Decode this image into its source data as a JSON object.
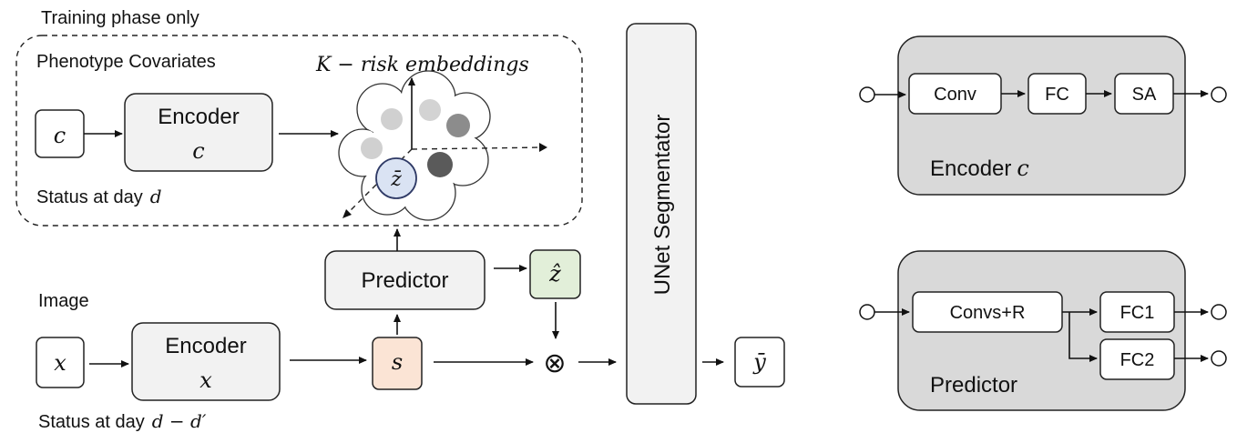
{
  "training_label": "Training phase only",
  "phenotype_label": "Phenotype Covariates",
  "risk_label": "K − risk embeddings",
  "status_d_label": "Status at day",
  "status_d_var": "d",
  "status_dd_label": "Status at day",
  "status_dd_var": "d − d′",
  "image_label": "Image",
  "c_symbol": "c",
  "x_symbol": "x",
  "encoder_c": {
    "title": "Encoder",
    "sub": "c"
  },
  "encoder_x": {
    "title": "Encoder",
    "sub": "x"
  },
  "zbar_symbol": "z̄",
  "zhat_symbol": "ẑ",
  "s_symbol": "s",
  "ybar_symbol": "ȳ",
  "predictor_label": "Predictor",
  "unet_label": "UNet Segmentator",
  "otimes_symbol": "⊗",
  "detail_encoder": {
    "blocks": [
      "Conv",
      "FC",
      "SA"
    ],
    "title": "Encoder",
    "title_var": "c"
  },
  "detail_predictor": {
    "blocks": [
      "Convs+R",
      "FC1",
      "FC2"
    ],
    "title": "Predictor"
  },
  "colors": {
    "zhat_fill": "#e2efd9",
    "s_fill": "#fbe4d5",
    "zbar_fill": "#dae3f3",
    "box_fill": "#f2f2f2",
    "panel_fill": "#d9d9d9"
  }
}
